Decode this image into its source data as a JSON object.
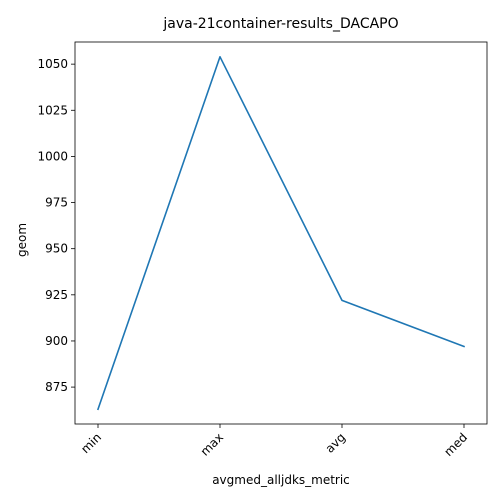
{
  "chart_data": {
    "type": "line",
    "title": "java-21container-results_DACAPO",
    "xlabel": "avgmed_alljdks_metric",
    "ylabel": "geom",
    "categories": [
      "min",
      "max",
      "avg",
      "med"
    ],
    "series": [
      {
        "values": [
          863,
          1054,
          922,
          897
        ],
        "color": "#1f77b4"
      }
    ],
    "ylim": [
      855,
      1062
    ],
    "yticks": [
      875,
      900,
      925,
      950,
      975,
      1000,
      1025,
      1050
    ],
    "grid": false,
    "legend": "none"
  }
}
